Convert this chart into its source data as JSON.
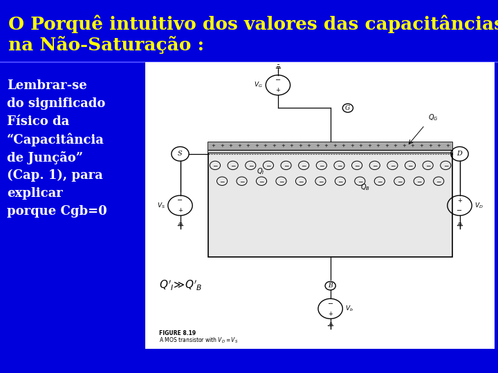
{
  "bg_color": "#0000dd",
  "title_line1": "O Porquê intuitivo dos valores das capacitâncias",
  "title_line2": "na Não-Saturação :",
  "title_color": "#ffff00",
  "title_fontsize": 19,
  "body_lines": [
    "Lembrar-se",
    "do significado",
    "Físico da",
    "“Capacitância",
    "de Junção”",
    "(Cap. 1), para",
    "explicar",
    "porque Cgb=0"
  ],
  "body_color": "#ffffff",
  "body_fontsize": 13,
  "fig_w": 7.2,
  "fig_h": 5.4,
  "dpi": 100
}
